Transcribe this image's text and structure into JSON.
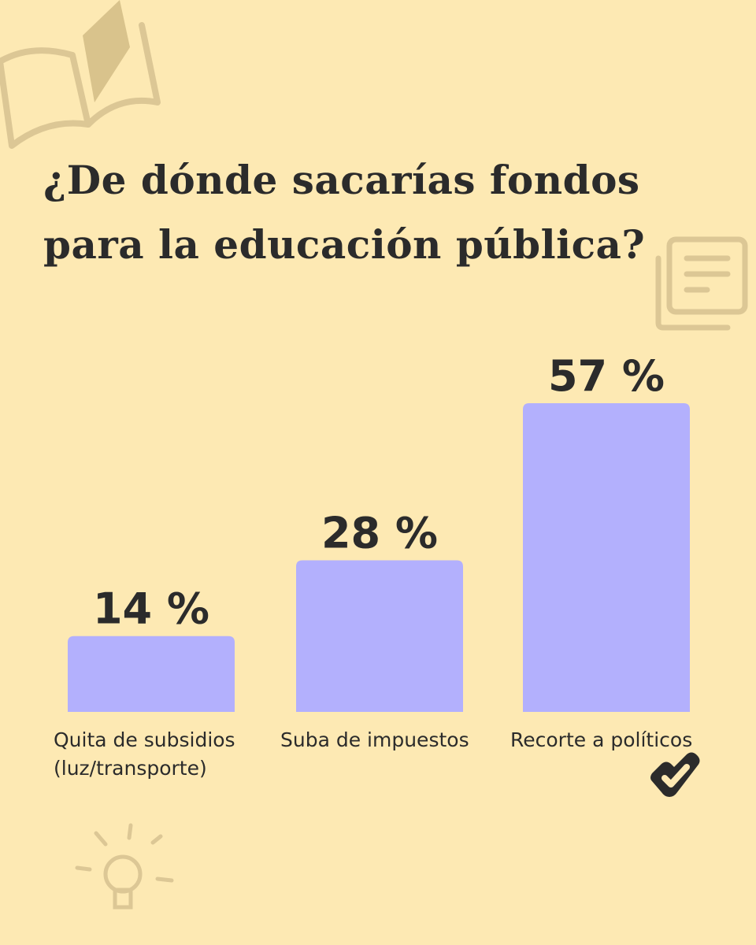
{
  "title_lines": [
    "¿De dónde sacarías fondos",
    "para la educación pública?"
  ],
  "colors": {
    "background": "#fde9b3",
    "bar": "#b3b0fd",
    "text": "#2b2b2b",
    "decoration": "#d9c38c"
  },
  "icons": [
    "book-icon",
    "document-icon",
    "lightbulb-icon",
    "check-logo-icon"
  ],
  "chart_data": {
    "type": "bar",
    "title": "¿De dónde sacarías fondos para la educación pública?",
    "categories": [
      [
        "Quita de subsidios",
        "(luz/transporte)"
      ],
      [
        "Suba de impuestos"
      ],
      [
        "Recorte a políticos"
      ]
    ],
    "values": [
      14,
      28,
      57
    ],
    "value_labels": [
      "14 %",
      "28 %",
      "57 %"
    ],
    "unit": "%",
    "ylim": [
      0,
      57
    ],
    "grid": false,
    "legend": "none"
  }
}
